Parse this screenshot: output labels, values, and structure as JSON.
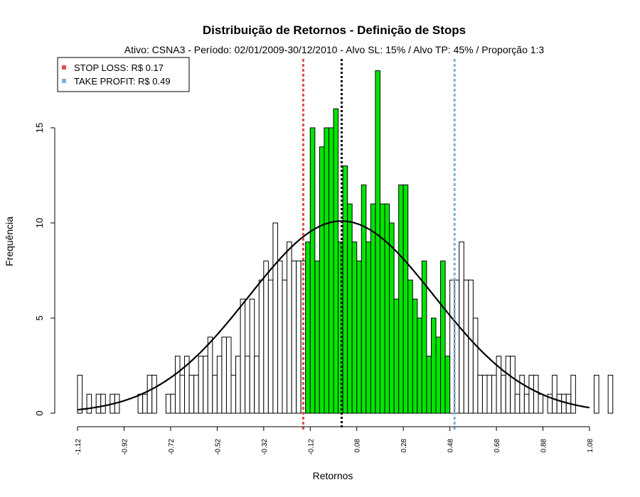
{
  "chart_data": {
    "type": "bar",
    "title": "Distribuição de Retornos - Definição de Stops",
    "subtitle": "Ativo: CSNA3 - Período: 02/01/2009-30/12/2010 - Alvo SL: 15% / Alvo TP: 45% / Proporção 1:3",
    "xlabel": "Retornos",
    "ylabel": "Frequência",
    "xlim": [
      -1.12,
      1.08
    ],
    "ylim": [
      0,
      18
    ],
    "x_ticks": [
      "-1.12",
      "-0.92",
      "-0.72",
      "-0.52",
      "-0.32",
      "-0.12",
      "0.08",
      "0.28",
      "0.48",
      "0.68",
      "0.88",
      "1.08"
    ],
    "y_ticks": [
      "0",
      "5",
      "10",
      "15"
    ],
    "bin_width": 0.02,
    "bin_start": -1.12,
    "values": [
      2,
      0,
      1,
      0,
      1,
      1,
      0,
      1,
      1,
      0,
      0,
      0,
      0,
      1,
      1,
      2,
      2,
      0,
      0,
      1,
      1,
      3,
      2,
      3,
      2,
      2,
      3,
      3,
      4,
      2,
      3,
      4,
      4,
      2,
      3,
      6,
      3,
      6,
      3,
      7,
      8,
      7,
      10,
      8,
      7,
      9,
      8,
      8,
      8,
      9,
      15,
      8,
      14,
      15,
      15,
      16,
      9,
      13,
      11,
      9,
      8,
      12,
      9,
      11,
      18,
      11,
      11,
      10,
      6,
      12,
      12,
      7,
      6,
      5,
      8,
      3,
      5,
      4,
      8,
      3,
      7,
      7,
      9,
      7,
      7,
      5,
      2,
      2,
      2,
      2,
      3,
      2,
      3,
      3,
      1,
      2,
      1,
      2,
      2,
      1,
      0,
      1,
      2,
      1,
      1,
      1,
      2,
      0,
      0,
      0,
      0,
      2,
      0,
      0,
      2
    ],
    "highlight": {
      "from": -0.14,
      "to": 0.48,
      "color": "#00e600"
    },
    "lines": [
      {
        "name": "STOP LOSS",
        "x": -0.15,
        "color": "#e05050",
        "style": "dashed"
      },
      {
        "name": "média",
        "x": 0.015,
        "color": "#000000",
        "style": "dotted"
      },
      {
        "name": "TAKE PROFIT",
        "x": 0.5,
        "color": "#7fb0d0",
        "style": "dashed"
      }
    ],
    "normal_curve": {
      "mean": 0.015,
      "sd": 0.4,
      "peak": 10.1
    },
    "legend": {
      "placement": "top-left",
      "items": [
        {
          "label": "STOP LOSS: R$ 0.17",
          "color": "#e05050"
        },
        {
          "label": "TAKE PROFIT: R$ 0.49",
          "color": "#7fb0d0"
        }
      ]
    },
    "grid": false
  }
}
